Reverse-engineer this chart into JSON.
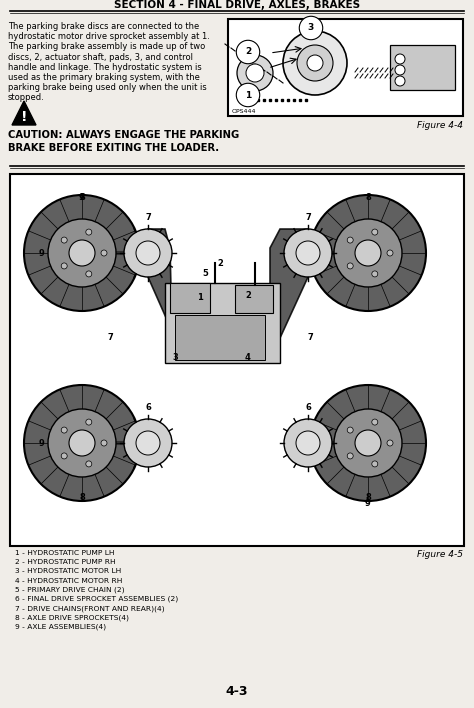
{
  "title": "SECTION 4 - FINAL DRIVE, AXLES, BRAKES",
  "page_number": "4-3",
  "figure4_label": "Figure 4-4",
  "figure5_label": "Figure 4-5",
  "bg_color": "#f0ede8",
  "text_color": "#000000",
  "lines_top": [
    "The parking brake discs are connected to the",
    "hydrostatic motor drive sprocket assembly at 1.",
    "The parking brake assembly is made up of two",
    "discs, 2, actuator shaft, pads, 3, and control",
    "handle and linkage. The hydrostatic system is",
    "used as the primary braking system, with the",
    "parking brake being used only when the unit is",
    "stopped."
  ],
  "caution_lines": [
    "CAUTION: ALWAYS ENGAGE THE PARKING",
    "BRAKE BEFORE EXITING THE LOADER."
  ],
  "legend_items": [
    "1 - HYDROSTATIC PUMP LH",
    "2 - HYDROSTATIC PUMP RH",
    "3 - HYDROSTATIC MOTOR LH",
    "4 - HYDROSTATIC MOTOR RH",
    "5 - PRIMARY DRIVE CHAIN (2)",
    "6 - FINAL DRIVE SPROCKET ASSEMBLIES (2)",
    "7 - DRIVE CHAINS(FRONT AND REAR)(4)",
    "8 - AXLE DRIVE SPROCKETS(4)",
    "9 - AXLE ASSEMBLIES(4)"
  ]
}
